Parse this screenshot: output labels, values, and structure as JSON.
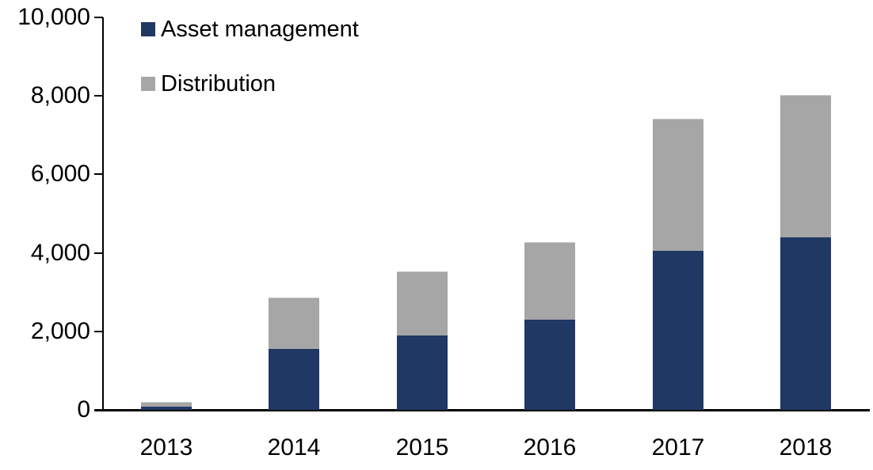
{
  "chart_data": {
    "type": "bar",
    "stacked": true,
    "title": "",
    "xlabel": "",
    "ylabel": "",
    "categories": [
      "2013",
      "2014",
      "2015",
      "2016",
      "2017",
      "2018"
    ],
    "series": [
      {
        "name": "Asset management",
        "color": "#1f3864",
        "values": [
          75,
          1550,
          1900,
          2300,
          4050,
          4400
        ]
      },
      {
        "name": "Distribution",
        "color": "#a6a6a6",
        "values": [
          100,
          1300,
          1600,
          1950,
          3350,
          3600
        ]
      }
    ],
    "totals": [
      175,
      2850,
      3500,
      4250,
      7400,
      8000
    ],
    "ylim": [
      0,
      10000
    ],
    "ytick_interval": 2000,
    "ytick_labels": [
      "0",
      "2,000",
      "4,000",
      "6,000",
      "8,000",
      "10,000"
    ],
    "grid": false,
    "legend_position": "top-left-inside",
    "axis_color": "#000000",
    "background_color": "#ffffff"
  }
}
